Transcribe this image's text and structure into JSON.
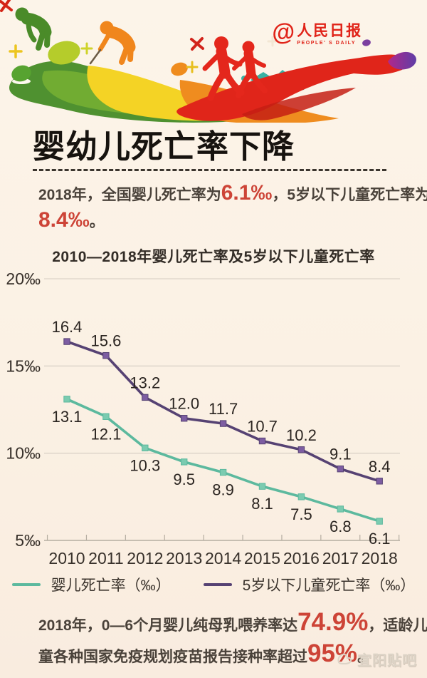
{
  "brand": {
    "at_symbol": "@",
    "name_cn": "人民日报",
    "name_en": "PEOPLE' S DAILY"
  },
  "title": "婴幼儿死亡率下降",
  "intro": {
    "p1": "2018年，全国婴儿死亡率为",
    "v1": "6.1‰",
    "p2": "，5岁以下儿童死亡率为",
    "v2": "8.4‰",
    "p3": "。"
  },
  "chart_data": {
    "type": "line",
    "title": "2010—2018年婴儿死亡率及5岁以下儿童死亡率",
    "categories": [
      "2010",
      "2011",
      "2012",
      "2013",
      "2014",
      "2015",
      "2016",
      "2017",
      "2018"
    ],
    "series": [
      {
        "name": "婴儿死亡率（‰）",
        "color": "#5cb99e",
        "marker_color": "#7bcbb0",
        "values": [
          13.1,
          12.1,
          10.3,
          9.5,
          8.9,
          8.1,
          7.5,
          6.8,
          6.1
        ],
        "labels": [
          "13.1",
          "12.1",
          "10.3",
          "9.5",
          "8.9",
          "8.1",
          "7.5",
          "6.8",
          "6.1"
        ],
        "label_position": "below"
      },
      {
        "name": "5岁以下儿童死亡率（‰）",
        "color": "#564273",
        "marker_color": "#7d5da2",
        "values": [
          16.4,
          15.6,
          13.2,
          12.0,
          11.7,
          10.7,
          10.2,
          9.1,
          8.4
        ],
        "labels": [
          "16.4",
          "15.6",
          "13.2",
          "12.0",
          "11.7",
          "10.7",
          "10.2",
          "9.1",
          "8.4"
        ],
        "label_position": "above"
      }
    ],
    "ylim": [
      5,
      20
    ],
    "yticks": [
      {
        "value": 20,
        "label": "20‰"
      },
      {
        "value": 15,
        "label": "15‰"
      },
      {
        "value": 10,
        "label": "10‰"
      },
      {
        "value": 5,
        "label": "5‰"
      }
    ],
    "grid": true,
    "legend_position": "bottom"
  },
  "footer": {
    "p1": "2018年，0—6个月婴儿纯母乳喂养率达",
    "v1": "74.9%",
    "p2a": "，适龄儿",
    "p2b": "童各种国家免疫规划疫苗报告接种率超过",
    "v2": "95%",
    "p3": "。"
  },
  "watermark": {
    "text": "宜阳贴吧"
  }
}
